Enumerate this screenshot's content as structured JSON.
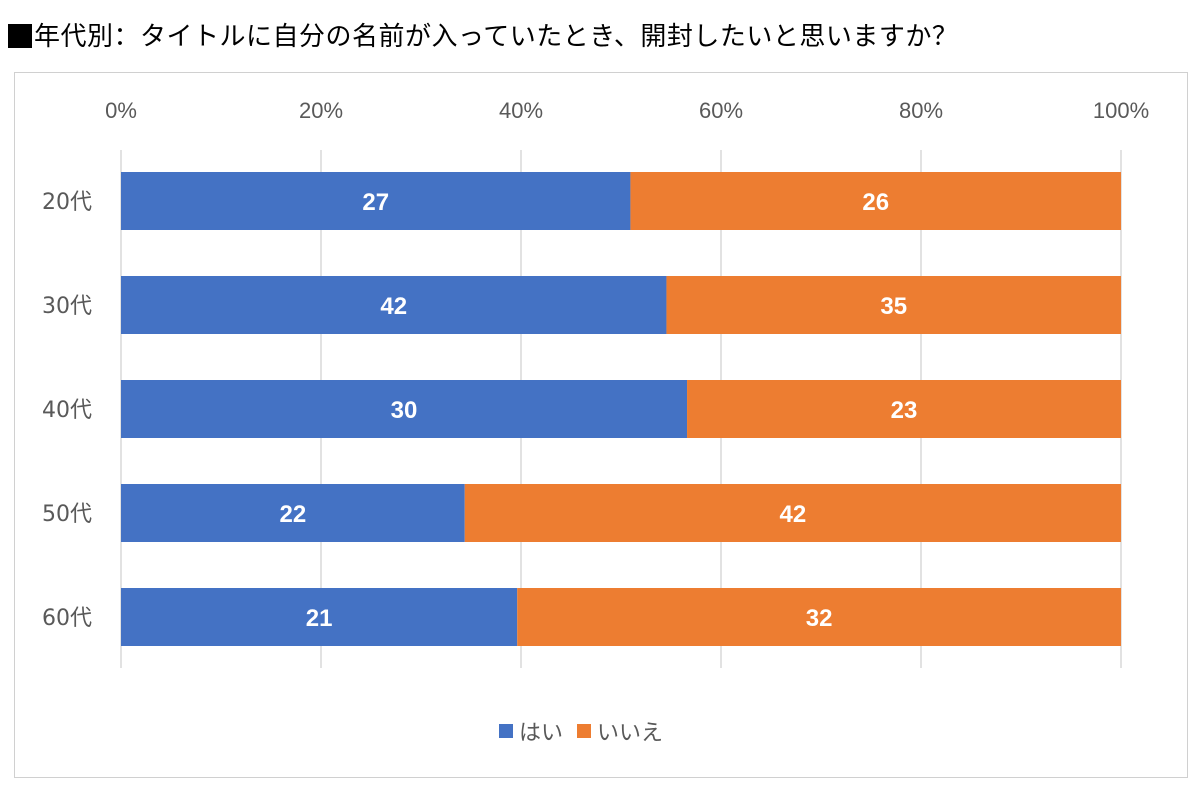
{
  "title": "年代別：タイトルに自分の名前が入っていたとき、開封したいと思いますか？",
  "chart_data": {
    "type": "bar",
    "orientation": "horizontal",
    "stacked": "percent",
    "categories": [
      "20代",
      "30代",
      "40代",
      "50代",
      "60代"
    ],
    "series": [
      {
        "name": "はい",
        "values": [
          27,
          42,
          30,
          22,
          21
        ],
        "color": "#4472C4"
      },
      {
        "name": "いいえ",
        "values": [
          26,
          35,
          23,
          42,
          32
        ],
        "color": "#ED7D31"
      }
    ],
    "xticks": [
      "0%",
      "20%",
      "40%",
      "60%",
      "80%",
      "100%"
    ],
    "xlim": [
      0,
      100
    ],
    "grid": true,
    "legend": "bottom"
  }
}
